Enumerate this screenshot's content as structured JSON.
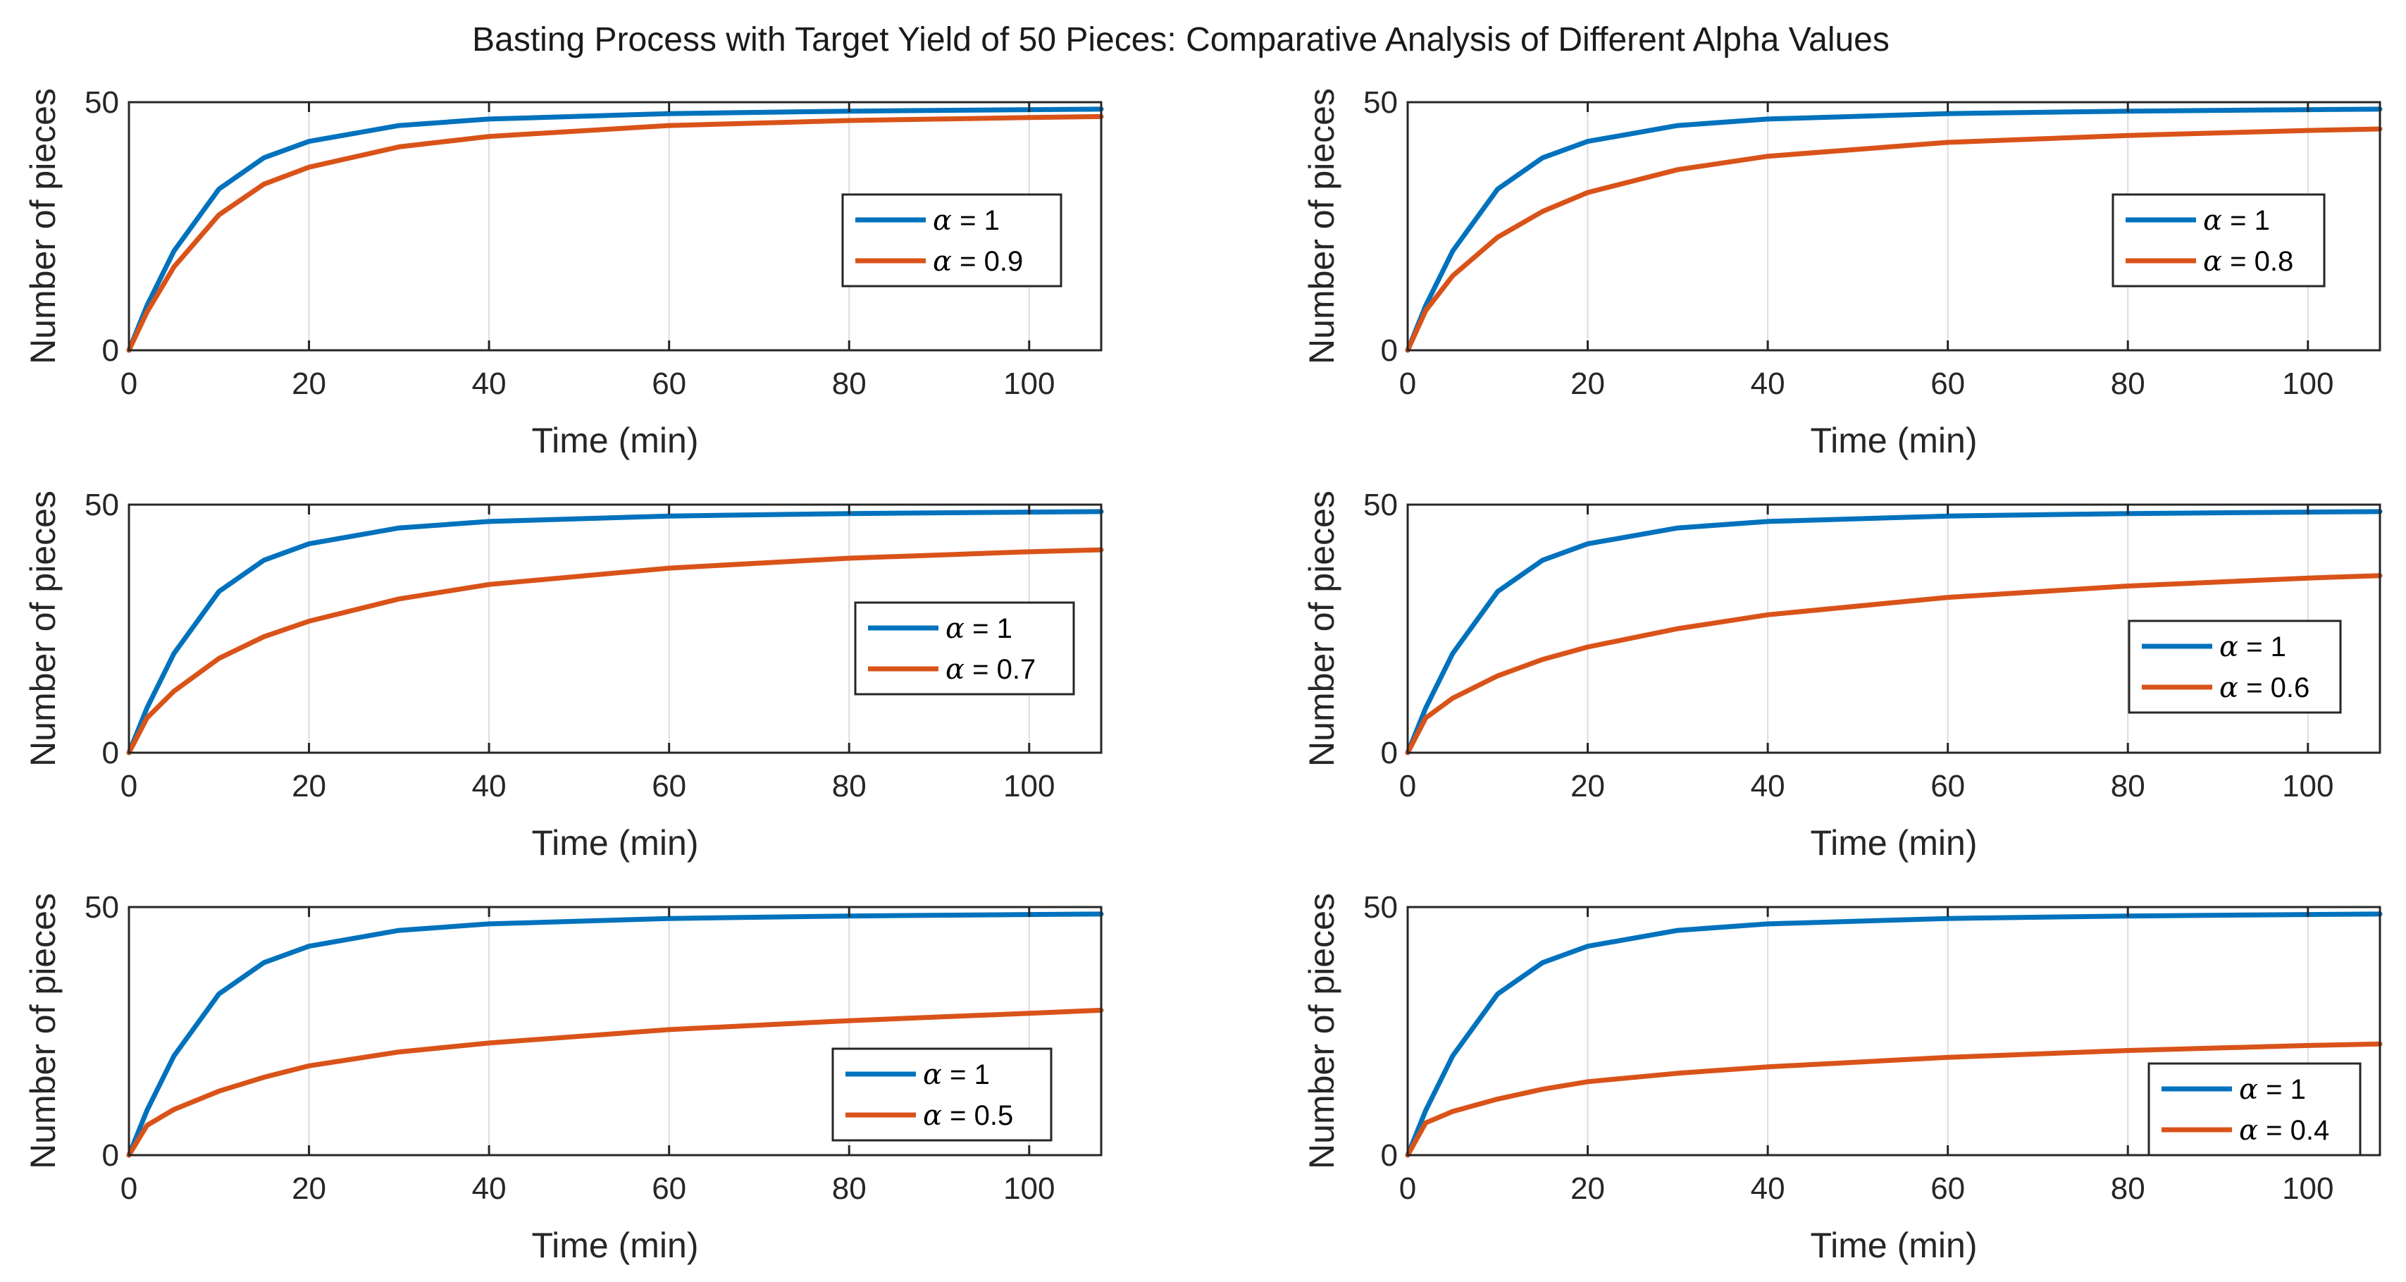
{
  "figure_title": "Basting Process with Target Yield of 50 Pieces: Comparative Analysis of Different Alpha Values",
  "colors": {
    "reference": "#0072BD",
    "fractional": "#D95319",
    "grid": "#dcdcdc",
    "axis": "#262626"
  },
  "chart_data": [
    {
      "type": "line",
      "xlabel": "Time (min)",
      "ylabel": "Number of pieces",
      "xlim": [
        0,
        108
      ],
      "ylim": [
        0,
        50
      ],
      "xticks": [
        "0",
        "20",
        "40",
        "60",
        "80",
        "100"
      ],
      "yticks": [
        "0",
        "50"
      ],
      "grid": true,
      "legend_position": "center-right",
      "x": [
        0,
        2,
        5,
        10,
        15,
        20,
        30,
        40,
        60,
        80,
        100,
        108
      ],
      "series": [
        {
          "name": "α = 1",
          "alpha_label": "α",
          "value_label": "= 1",
          "values": [
            0,
            9,
            20,
            32.5,
            38.8,
            42.1,
            45.3,
            46.6,
            47.7,
            48.2,
            48.5,
            48.6
          ]
        },
        {
          "name": "α = 0.9",
          "alpha_label": "α",
          "value_label": "= 0.9",
          "values": [
            0,
            7.7,
            16.8,
            27.3,
            33.5,
            36.9,
            41,
            43.1,
            45.3,
            46.3,
            46.9,
            47.1
          ]
        }
      ]
    },
    {
      "type": "line",
      "xlabel": "Time (min)",
      "ylabel": "Number of pieces",
      "xlim": [
        0,
        108
      ],
      "ylim": [
        0,
        50
      ],
      "xticks": [
        "0",
        "20",
        "40",
        "60",
        "80",
        "100"
      ],
      "yticks": [
        "0",
        "50"
      ],
      "grid": true,
      "legend_position": "top-right",
      "x": [
        0,
        2,
        5,
        10,
        15,
        20,
        30,
        40,
        60,
        80,
        100,
        108
      ],
      "series": [
        {
          "name": "α = 1",
          "alpha_label": "α",
          "value_label": "= 1",
          "values": [
            0,
            9,
            20,
            32.5,
            38.8,
            42.1,
            45.3,
            46.6,
            47.7,
            48.2,
            48.5,
            48.6
          ]
        },
        {
          "name": "α = 0.8",
          "alpha_label": "α",
          "value_label": "= 0.8",
          "values": [
            0,
            8,
            15,
            22.8,
            28,
            31.8,
            36.4,
            39.1,
            41.9,
            43.3,
            44.3,
            44.6
          ]
        }
      ]
    },
    {
      "type": "line",
      "xlabel": "Time (min)",
      "ylabel": "Number of pieces",
      "xlim": [
        0,
        108
      ],
      "ylim": [
        0,
        50
      ],
      "xticks": [
        "0",
        "20",
        "40",
        "60",
        "80",
        "100"
      ],
      "yticks": [
        "0",
        "50"
      ],
      "grid": true,
      "legend_position": "center-right",
      "x": [
        0,
        2,
        5,
        10,
        15,
        20,
        30,
        40,
        60,
        80,
        100,
        108
      ],
      "series": [
        {
          "name": "α = 1",
          "alpha_label": "α",
          "value_label": "= 1",
          "values": [
            0,
            9,
            20,
            32.5,
            38.8,
            42.1,
            45.3,
            46.6,
            47.7,
            48.2,
            48.5,
            48.6
          ]
        },
        {
          "name": "α = 0.7",
          "alpha_label": "α",
          "value_label": "= 0.7",
          "values": [
            0,
            7,
            12.4,
            19,
            23.4,
            26.5,
            31,
            33.9,
            37.2,
            39.2,
            40.5,
            40.9
          ]
        }
      ]
    },
    {
      "type": "line",
      "xlabel": "Time (min)",
      "ylabel": "Number of pieces",
      "xlim": [
        0,
        108
      ],
      "ylim": [
        0,
        50
      ],
      "xticks": [
        "0",
        "20",
        "40",
        "60",
        "80",
        "100"
      ],
      "yticks": [
        "0",
        "50"
      ],
      "grid": true,
      "legend_position": "bottom-right",
      "x": [
        0,
        2,
        5,
        10,
        15,
        20,
        30,
        40,
        60,
        80,
        100,
        108
      ],
      "series": [
        {
          "name": "α = 1",
          "alpha_label": "α",
          "value_label": "= 1",
          "values": [
            0,
            9,
            20,
            32.5,
            38.8,
            42.1,
            45.3,
            46.6,
            47.7,
            48.2,
            48.5,
            48.6
          ]
        },
        {
          "name": "α = 0.6",
          "alpha_label": "α",
          "value_label": "= 0.6",
          "values": [
            0,
            7,
            11,
            15.5,
            18.8,
            21.3,
            25,
            27.8,
            31.3,
            33.6,
            35.2,
            35.7
          ]
        }
      ]
    },
    {
      "type": "line",
      "xlabel": "Time (min)",
      "ylabel": "Number of pieces",
      "xlim": [
        0,
        108
      ],
      "ylim": [
        0,
        50
      ],
      "xticks": [
        "0",
        "20",
        "40",
        "60",
        "80",
        "100"
      ],
      "yticks": [
        "0",
        "50"
      ],
      "grid": true,
      "legend_position": "bottom-right",
      "x": [
        0,
        2,
        5,
        10,
        15,
        20,
        30,
        40,
        60,
        80,
        100,
        108
      ],
      "series": [
        {
          "name": "α = 1",
          "alpha_label": "α",
          "value_label": "= 1",
          "values": [
            0,
            9,
            20,
            32.5,
            38.8,
            42.1,
            45.3,
            46.6,
            47.7,
            48.2,
            48.5,
            48.6
          ]
        },
        {
          "name": "α = 0.5",
          "alpha_label": "α",
          "value_label": "= 0.5",
          "values": [
            0,
            6,
            9.2,
            12.9,
            15.7,
            18,
            20.8,
            22.6,
            25.3,
            27.1,
            28.6,
            29.2
          ]
        }
      ]
    },
    {
      "type": "line",
      "xlabel": "Time (min)",
      "ylabel": "Number of pieces",
      "xlim": [
        0,
        108
      ],
      "ylim": [
        0,
        50
      ],
      "xticks": [
        "0",
        "20",
        "40",
        "60",
        "80",
        "100"
      ],
      "yticks": [
        "0",
        "50"
      ],
      "grid": true,
      "legend_position": "bottom-right",
      "x": [
        0,
        2,
        5,
        10,
        15,
        20,
        30,
        40,
        60,
        80,
        100,
        108
      ],
      "series": [
        {
          "name": "α = 1",
          "alpha_label": "α",
          "value_label": "= 1",
          "values": [
            0,
            9,
            20,
            32.5,
            38.8,
            42.1,
            45.3,
            46.6,
            47.7,
            48.2,
            48.5,
            48.6
          ]
        },
        {
          "name": "α = 0.4",
          "alpha_label": "α",
          "value_label": "= 0.4",
          "values": [
            0,
            6.5,
            8.8,
            11.3,
            13.3,
            14.8,
            16.5,
            17.8,
            19.7,
            21.1,
            22.1,
            22.4
          ]
        }
      ]
    }
  ]
}
